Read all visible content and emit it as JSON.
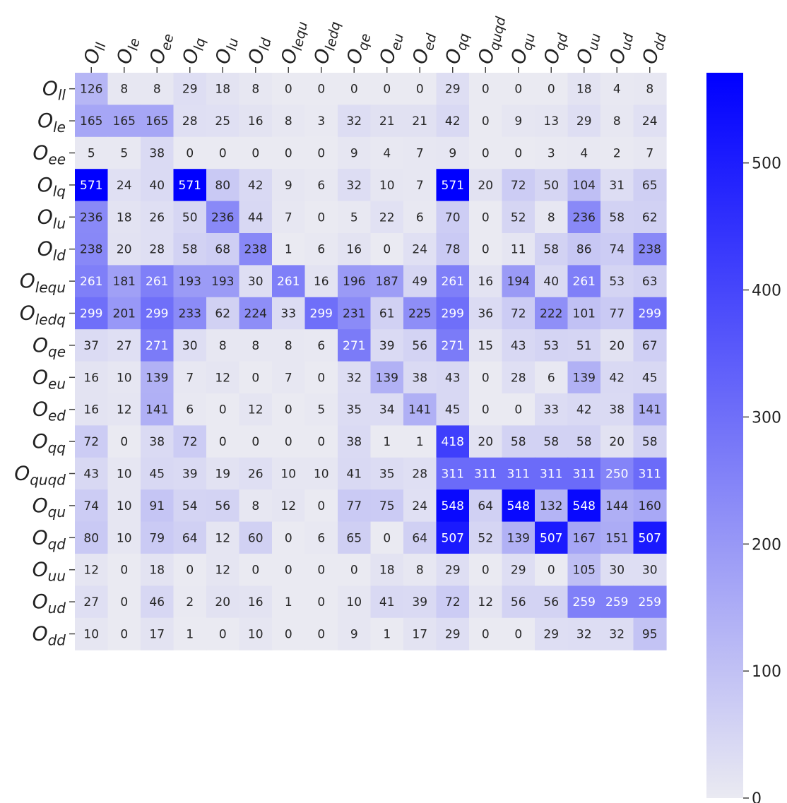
{
  "chart_data": {
    "type": "heatmap",
    "title": "",
    "xlabel": "",
    "ylabel": "",
    "row_labels": [
      {
        "main": "O",
        "sub": "ll"
      },
      {
        "main": "O",
        "sub": "le"
      },
      {
        "main": "O",
        "sub": "ee"
      },
      {
        "main": "O",
        "sub": "lq"
      },
      {
        "main": "O",
        "sub": "lu"
      },
      {
        "main": "O",
        "sub": "ld"
      },
      {
        "main": "O",
        "sub": "lequ"
      },
      {
        "main": "O",
        "sub": "ledq"
      },
      {
        "main": "O",
        "sub": "qe"
      },
      {
        "main": "O",
        "sub": "eu"
      },
      {
        "main": "O",
        "sub": "ed"
      },
      {
        "main": "O",
        "sub": "qq"
      },
      {
        "main": "O",
        "sub": "quqd"
      },
      {
        "main": "O",
        "sub": "qu"
      },
      {
        "main": "O",
        "sub": "qd"
      },
      {
        "main": "O",
        "sub": "uu"
      },
      {
        "main": "O",
        "sub": "ud"
      },
      {
        "main": "O",
        "sub": "dd"
      }
    ],
    "col_labels": [
      {
        "main": "O",
        "sub": "ll"
      },
      {
        "main": "O",
        "sub": "le"
      },
      {
        "main": "O",
        "sub": "ee"
      },
      {
        "main": "O",
        "sub": "lq"
      },
      {
        "main": "O",
        "sub": "lu"
      },
      {
        "main": "O",
        "sub": "ld"
      },
      {
        "main": "O",
        "sub": "lequ"
      },
      {
        "main": "O",
        "sub": "ledq"
      },
      {
        "main": "O",
        "sub": "qe"
      },
      {
        "main": "O",
        "sub": "eu"
      },
      {
        "main": "O",
        "sub": "ed"
      },
      {
        "main": "O",
        "sub": "qq"
      },
      {
        "main": "O",
        "sub": "quqd"
      },
      {
        "main": "O",
        "sub": "qu"
      },
      {
        "main": "O",
        "sub": "qd"
      },
      {
        "main": "O",
        "sub": "uu"
      },
      {
        "main": "O",
        "sub": "ud"
      },
      {
        "main": "O",
        "sub": "dd"
      }
    ],
    "values": [
      [
        126,
        8,
        8,
        29,
        18,
        8,
        0,
        0,
        0,
        0,
        0,
        29,
        0,
        0,
        0,
        18,
        4,
        8
      ],
      [
        165,
        165,
        165,
        28,
        25,
        16,
        8,
        3,
        32,
        21,
        21,
        42,
        0,
        9,
        13,
        29,
        8,
        24
      ],
      [
        5,
        5,
        38,
        0,
        0,
        0,
        0,
        0,
        9,
        4,
        7,
        9,
        0,
        0,
        3,
        4,
        2,
        7
      ],
      [
        571,
        24,
        40,
        571,
        80,
        42,
        9,
        6,
        32,
        10,
        7,
        571,
        20,
        72,
        50,
        104,
        31,
        65
      ],
      [
        236,
        18,
        26,
        50,
        236,
        44,
        7,
        0,
        5,
        22,
        6,
        70,
        0,
        52,
        8,
        236,
        58,
        62
      ],
      [
        238,
        20,
        28,
        58,
        68,
        238,
        1,
        6,
        16,
        0,
        24,
        78,
        0,
        11,
        58,
        86,
        74,
        238
      ],
      [
        261,
        181,
        261,
        193,
        193,
        30,
        261,
        16,
        196,
        187,
        49,
        261,
        16,
        194,
        40,
        261,
        53,
        63
      ],
      [
        299,
        201,
        299,
        233,
        62,
        224,
        33,
        299,
        231,
        61,
        225,
        299,
        36,
        72,
        222,
        101,
        77,
        299
      ],
      [
        37,
        27,
        271,
        30,
        8,
        8,
        8,
        6,
        271,
        39,
        56,
        271,
        15,
        43,
        53,
        51,
        20,
        67
      ],
      [
        16,
        10,
        139,
        7,
        12,
        0,
        7,
        0,
        32,
        139,
        38,
        43,
        0,
        28,
        6,
        139,
        42,
        45
      ],
      [
        16,
        12,
        141,
        6,
        0,
        12,
        0,
        5,
        35,
        34,
        141,
        45,
        0,
        0,
        33,
        42,
        38,
        141
      ],
      [
        72,
        0,
        38,
        72,
        0,
        0,
        0,
        0,
        38,
        1,
        1,
        418,
        20,
        58,
        58,
        58,
        20,
        58
      ],
      [
        43,
        10,
        45,
        39,
        19,
        26,
        10,
        10,
        41,
        35,
        28,
        311,
        311,
        311,
        311,
        311,
        250,
        311
      ],
      [
        74,
        10,
        91,
        54,
        56,
        8,
        12,
        0,
        77,
        75,
        24,
        548,
        64,
        548,
        132,
        548,
        144,
        160
      ],
      [
        80,
        10,
        79,
        64,
        12,
        60,
        0,
        6,
        65,
        0,
        64,
        507,
        52,
        139,
        507,
        167,
        151,
        507
      ],
      [
        12,
        0,
        18,
        0,
        12,
        0,
        0,
        0,
        0,
        18,
        8,
        29,
        0,
        29,
        0,
        105,
        30,
        30
      ],
      [
        27,
        0,
        46,
        2,
        20,
        16,
        1,
        0,
        10,
        41,
        39,
        72,
        12,
        56,
        56,
        259,
        259,
        259
      ],
      [
        10,
        0,
        17,
        1,
        0,
        10,
        0,
        0,
        9,
        1,
        17,
        29,
        0,
        0,
        29,
        32,
        32,
        95
      ]
    ],
    "colorbar": {
      "range": [
        0,
        571
      ],
      "ticks": [
        0,
        100,
        200,
        300,
        400,
        500
      ],
      "tick_labels": [
        "0",
        "100",
        "200",
        "300",
        "400",
        "500"
      ],
      "color_low": "#eaeaf2",
      "color_high": "#0000ff"
    },
    "text_color_dark": "#262626",
    "text_color_light": "#ffffff",
    "grid": false,
    "legend": "colorbar-right"
  }
}
